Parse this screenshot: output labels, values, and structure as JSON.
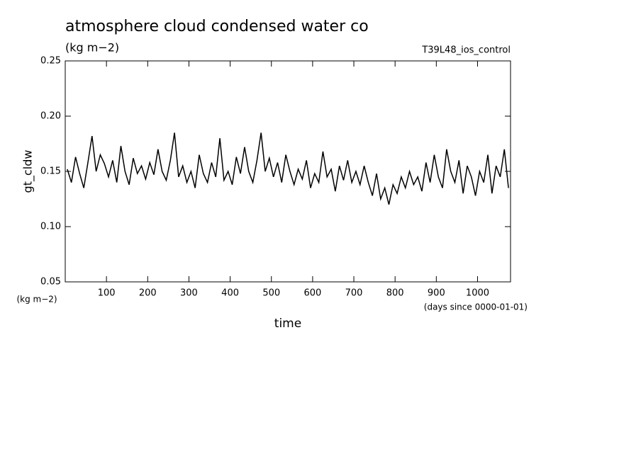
{
  "chart_data": {
    "type": "line",
    "title": "atmosphere cloud condensed water co",
    "subtitle": "(kg m−2)",
    "experiment": "T39L48_ios_control",
    "ylabel": "gt_cldw",
    "yunit": "(kg m−2)",
    "xlabel": "time",
    "xunit": "(days since 0000-01-01)",
    "color": "#000000",
    "xlim": [
      0,
      1080
    ],
    "ylim": [
      0.05,
      0.25
    ],
    "xticks": [
      100,
      200,
      300,
      400,
      500,
      600,
      700,
      800,
      900,
      1000
    ],
    "yticks": [
      {
        "value": 0.05,
        "label": "0.05"
      },
      {
        "value": 0.1,
        "label": "0.10"
      },
      {
        "value": 0.15,
        "label": "0.15"
      },
      {
        "value": 0.2,
        "label": "0.20"
      },
      {
        "value": 0.25,
        "label": "0.25"
      }
    ],
    "x": [
      5,
      15,
      25,
      35,
      45,
      55,
      65,
      75,
      85,
      95,
      105,
      115,
      125,
      135,
      145,
      155,
      165,
      175,
      185,
      195,
      205,
      215,
      225,
      235,
      245,
      255,
      265,
      275,
      285,
      295,
      305,
      315,
      325,
      335,
      345,
      355,
      365,
      375,
      385,
      395,
      405,
      415,
      425,
      435,
      445,
      455,
      465,
      475,
      485,
      495,
      505,
      515,
      525,
      535,
      545,
      555,
      565,
      575,
      585,
      595,
      605,
      615,
      625,
      635,
      645,
      655,
      665,
      675,
      685,
      695,
      705,
      715,
      725,
      735,
      745,
      755,
      765,
      775,
      785,
      795,
      805,
      815,
      825,
      835,
      845,
      855,
      865,
      875,
      885,
      895,
      905,
      915,
      925,
      935,
      945,
      955,
      965,
      975,
      985,
      995,
      1005,
      1015,
      1025,
      1035,
      1045,
      1055,
      1065,
      1075
    ],
    "series": [
      {
        "name": "gt_cldw",
        "color": "#000000",
        "values": [
          0.152,
          0.14,
          0.163,
          0.148,
          0.135,
          0.158,
          0.182,
          0.15,
          0.165,
          0.157,
          0.145,
          0.16,
          0.14,
          0.173,
          0.15,
          0.138,
          0.162,
          0.148,
          0.155,
          0.143,
          0.158,
          0.147,
          0.17,
          0.15,
          0.142,
          0.16,
          0.185,
          0.145,
          0.155,
          0.14,
          0.15,
          0.135,
          0.165,
          0.148,
          0.14,
          0.158,
          0.145,
          0.18,
          0.142,
          0.15,
          0.138,
          0.163,
          0.148,
          0.172,
          0.15,
          0.14,
          0.16,
          0.185,
          0.15,
          0.162,
          0.145,
          0.158,
          0.14,
          0.165,
          0.15,
          0.138,
          0.152,
          0.143,
          0.16,
          0.135,
          0.148,
          0.14,
          0.168,
          0.145,
          0.152,
          0.132,
          0.155,
          0.142,
          0.16,
          0.14,
          0.15,
          0.138,
          0.155,
          0.14,
          0.128,
          0.148,
          0.125,
          0.135,
          0.12,
          0.138,
          0.13,
          0.145,
          0.135,
          0.15,
          0.138,
          0.145,
          0.132,
          0.158,
          0.14,
          0.165,
          0.145,
          0.135,
          0.17,
          0.15,
          0.14,
          0.16,
          0.13,
          0.155,
          0.145,
          0.128,
          0.15,
          0.14,
          0.165,
          0.13,
          0.155,
          0.145,
          0.17,
          0.135
        ]
      }
    ]
  }
}
